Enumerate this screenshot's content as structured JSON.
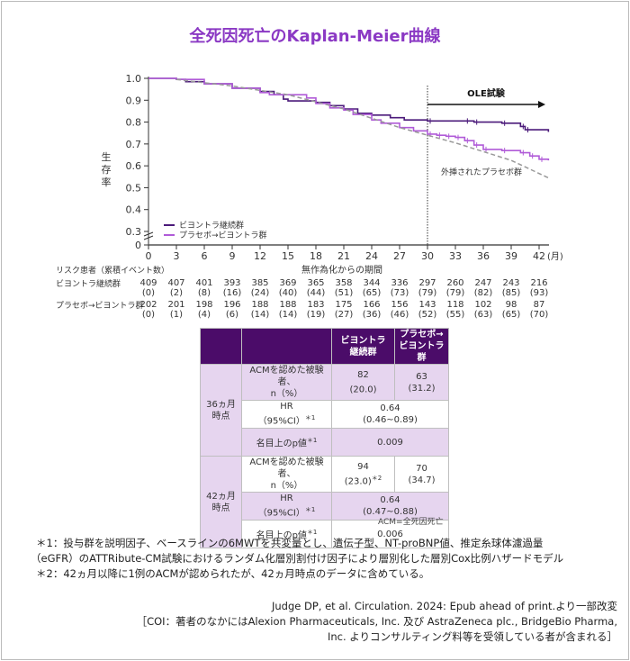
{
  "title": "全死因死亡のKaplan-Meier曲線",
  "chart_data": {
    "type": "line",
    "title": "全死因死亡のKaplan-Meier曲線",
    "xlabel": "無作為化からの期間",
    "x_unit": "(月)",
    "ylabel": "生存率",
    "xlim": [
      0,
      42
    ],
    "ylim": [
      0,
      1.0
    ],
    "y_axis_break": [
      0,
      0.3
    ],
    "xticks": [
      0,
      3,
      6,
      9,
      12,
      15,
      18,
      21,
      24,
      27,
      30,
      33,
      36,
      39,
      42
    ],
    "yticks": [
      "0",
      "0.3",
      "0.4",
      "0.5",
      "0.6",
      "0.7",
      "0.8",
      "0.9",
      "1.0"
    ],
    "legend_placement": "bottom-left",
    "ole_label": "OLE試験",
    "ole_start": 30,
    "extrapolated_label": "外挿されたプラセボ群",
    "series": [
      {
        "name": "ビヨントラ継続群",
        "color": "#4b1a7a",
        "x": [
          0,
          3,
          4,
          6,
          9,
          12,
          13.5,
          14.5,
          15,
          18,
          19.5,
          21,
          22.5,
          24,
          26,
          27.5,
          30,
          34,
          35,
          38,
          40,
          40.5,
          43
        ],
        "y": [
          1.0,
          0.995,
          0.985,
          0.975,
          0.955,
          0.94,
          0.925,
          0.905,
          0.897,
          0.89,
          0.875,
          0.86,
          0.84,
          0.832,
          0.82,
          0.81,
          0.805,
          0.805,
          0.8,
          0.795,
          0.78,
          0.765,
          0.755
        ]
      },
      {
        "name": "プラセボ→ビヨントラ群",
        "color": "#b05bd8",
        "x": [
          0,
          3,
          6,
          9,
          12,
          13,
          15,
          17,
          18,
          19.5,
          21,
          22,
          24,
          25,
          27,
          28.5,
          30,
          31,
          32,
          33,
          34,
          35,
          36,
          38,
          40,
          41,
          42,
          43
        ],
        "y": [
          1.0,
          0.995,
          0.975,
          0.955,
          0.935,
          0.925,
          0.925,
          0.91,
          0.885,
          0.865,
          0.855,
          0.835,
          0.81,
          0.795,
          0.775,
          0.76,
          0.745,
          0.74,
          0.735,
          0.73,
          0.715,
          0.695,
          0.675,
          0.67,
          0.66,
          0.645,
          0.63,
          0.625
        ]
      },
      {
        "name": "外挿されたプラセボ群",
        "color": "#999999",
        "dashed": true,
        "x": [
          3,
          9,
          15,
          21,
          27,
          30,
          33,
          36,
          39,
          43
        ],
        "y": [
          0.995,
          0.965,
          0.925,
          0.86,
          0.775,
          0.74,
          0.705,
          0.665,
          0.625,
          0.545
        ]
      }
    ]
  },
  "risk_table": {
    "header": "リスク患者（累積イベント数）",
    "rows": [
      {
        "label": "ビヨントラ継続群",
        "n": [
          "409",
          "407",
          "401",
          "393",
          "385",
          "369",
          "365",
          "358",
          "344",
          "336",
          "297",
          "260",
          "247",
          "243",
          "216"
        ],
        "events": [
          "(0)",
          "(2)",
          "(8)",
          "(16)",
          "(24)",
          "(40)",
          "(44)",
          "(51)",
          "(65)",
          "(73)",
          "(79)",
          "(79)",
          "(82)",
          "(85)",
          "(93)"
        ]
      },
      {
        "label": "プラセボ→ビヨントラ群",
        "n": [
          "202",
          "201",
          "198",
          "196",
          "188",
          "188",
          "183",
          "175",
          "166",
          "156",
          "143",
          "118",
          "102",
          "98",
          "87"
        ],
        "events": [
          "(0)",
          "(1)",
          "(4)",
          "(6)",
          "(14)",
          "(14)",
          "(19)",
          "(27)",
          "(36)",
          "(46)",
          "(52)",
          "(55)",
          "(63)",
          "(65)",
          "(70)"
        ]
      }
    ]
  },
  "table": {
    "col1": "ビヨントラ\n継続群",
    "col2": "プラセボ→\nビヨントラ群",
    "groups": [
      {
        "label": "36ヵ月\n時点",
        "acm_label": "ACMを認めた被験者、\nn（%）",
        "acm1": "82\n(20.0)",
        "acm1_sup": "",
        "acm2": "63\n(31.2)",
        "hr_label": "HR\n（95%CI）",
        "hr_sup": "＊1",
        "hr": "0.64\n(0.46~0.89)",
        "p_label": "名目上のp値",
        "p_sup": "＊1",
        "p": "0.009"
      },
      {
        "label": "42ヵ月\n時点",
        "acm_label": "ACMを認めた被験者、\nn（%）",
        "acm1": "94\n(23.0)",
        "acm1_sup": "＊2",
        "acm2": "70\n(34.7)",
        "hr_label": "HR\n（95%CI）",
        "hr_sup": "＊1",
        "hr": "0.64\n(0.47~0.88)",
        "p_label": "名目上のp値",
        "p_sup": "＊1",
        "p": "0.006"
      }
    ],
    "abbrev": "ACM=全死因死亡"
  },
  "notes": [
    "＊1：投与群を説明因子、ベースラインの6MWTを共変量とし、遺伝子型、NT-proBNP値、推定糸球体濾過量",
    "（eGFR）のATTRibute-CM試験におけるランダム化層別割付け因子により層別化した層別Cox比例ハザードモデル",
    "＊2：42ヵ月以降に1例のACMが認められたが、42ヵ月時点のデータに含めている。"
  ],
  "citation": "Judge DP, et al. Circulation. 2024: Epub ahead of print.より一部改変",
  "coi": "［COI：著者のなかにはAlexion Pharmaceuticals, Inc. 及び AstraZeneca plc., BridgeBio Pharma, Inc. よりコンサルティング料等を受領している者が含まれる］"
}
